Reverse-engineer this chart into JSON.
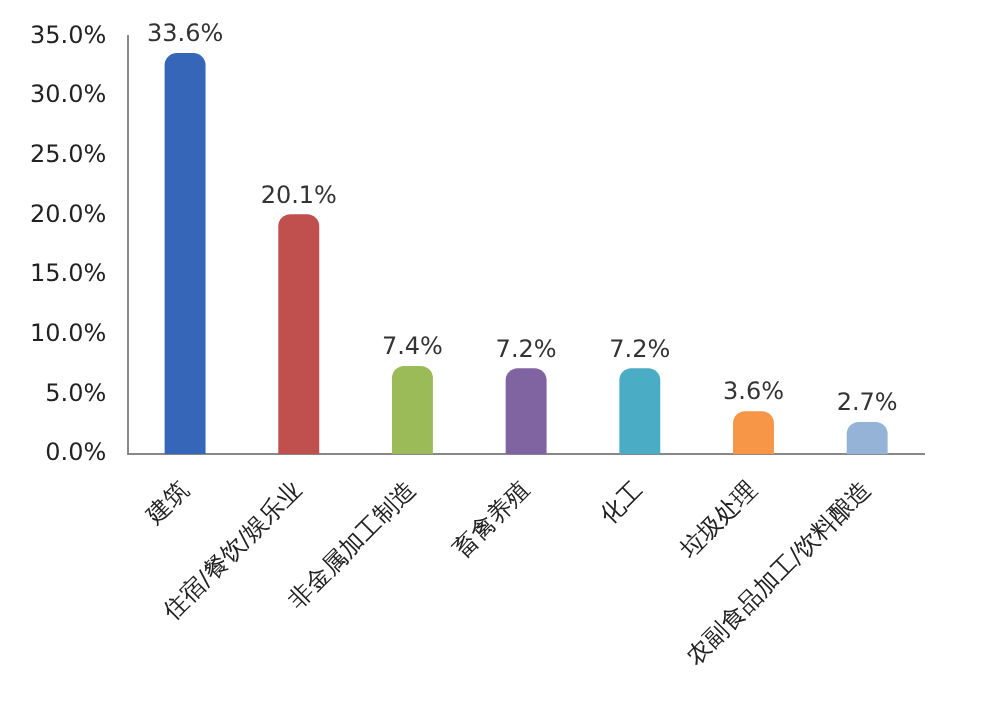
{
  "chart_data": {
    "type": "bar",
    "categories": [
      "建筑",
      "住宿/餐饮/娱乐业",
      "非金属加工制造",
      "畜禽养殖",
      "化工",
      "垃圾处理",
      "农副食品加工/饮料酿造"
    ],
    "values": [
      33.6,
      20.1,
      7.4,
      7.2,
      7.2,
      3.6,
      2.7
    ],
    "colors": [
      "#3566b8",
      "#c0504d",
      "#9bbb59",
      "#8064a2",
      "#4bacc6",
      "#f79646",
      "#95b3d7"
    ],
    "value_labels": [
      "33.6%",
      "20.1%",
      "7.4%",
      "7.2%",
      "7.2%",
      "3.6%",
      "2.7%"
    ],
    "ylim": [
      0,
      35
    ],
    "yticks": [
      {
        "value": 0,
        "label": "0.0%"
      },
      {
        "value": 5,
        "label": "5.0%"
      },
      {
        "value": 10,
        "label": "10.0%"
      },
      {
        "value": 15,
        "label": "15.0%"
      },
      {
        "value": 20,
        "label": "20.0%"
      },
      {
        "value": 25,
        "label": "25.0%"
      },
      {
        "value": 30,
        "label": "30.0%"
      },
      {
        "value": 35,
        "label": "35.0%"
      }
    ],
    "grid": false,
    "legend": false
  }
}
